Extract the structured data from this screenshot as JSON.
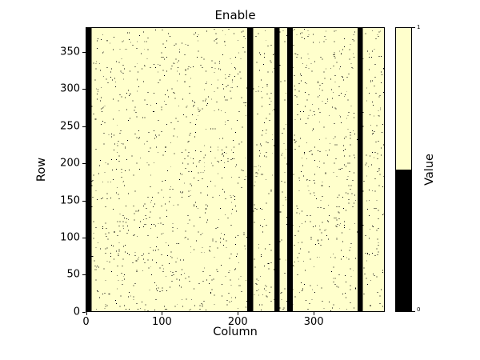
{
  "chart_data": {
    "type": "heatmap",
    "title": "Enable",
    "xlabel": "Column",
    "ylabel": "Row",
    "n_cols": 394,
    "n_rows": 384,
    "xlim": [
      0,
      393
    ],
    "ylim": [
      0,
      383
    ],
    "xticks": [
      0,
      100,
      200,
      300
    ],
    "yticks": [
      0,
      50,
      100,
      150,
      200,
      250,
      300,
      350
    ],
    "grid": false,
    "background_value": 1,
    "value_colors": {
      "0": "#000000",
      "1": "#ffffcc"
    },
    "zero_value_column_bands": [
      [
        0,
        6
      ],
      [
        213,
        220
      ],
      [
        249,
        255
      ],
      [
        266,
        272
      ],
      [
        359,
        365
      ]
    ],
    "noise_description": "sparse isolated zero-valued pixels scattered over the enabled (value 1) background",
    "noise_density": 0.012,
    "noise_seed": 42,
    "colorbar_label": "Value",
    "colorbar_orientation": "vertical",
    "colorbar_ticks": {
      "top": "1",
      "bottom": "0"
    }
  }
}
